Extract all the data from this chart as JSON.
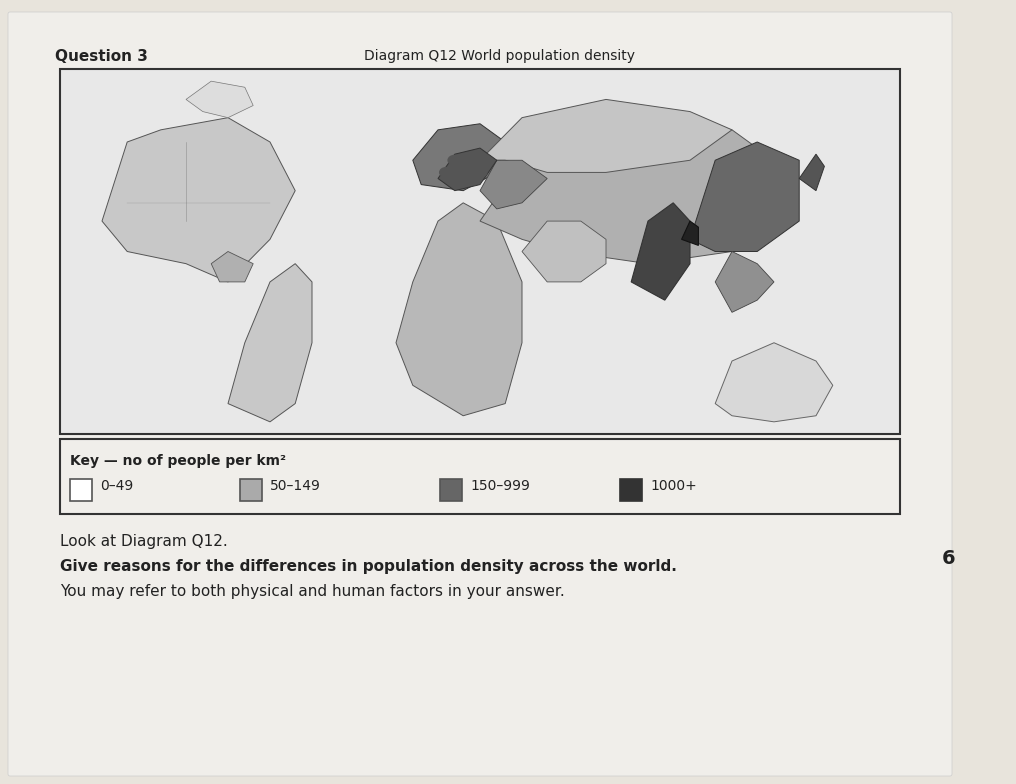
{
  "page_bg": "#e8e4dc",
  "paper_bg": "#f0eeea",
  "question_label": "Question 3",
  "diagram_title": "Diagram Q12 World population density",
  "map_border_color": "#333333",
  "key_title": "Key — no of people per km²",
  "legend_items": [
    {
      "label": "0–49",
      "color": "#ffffff",
      "edge": "#555555"
    },
    {
      "label": "50–149",
      "color": "#aaaaaa",
      "edge": "#555555"
    },
    {
      "label": "150–999",
      "color": "#666666",
      "edge": "#555555"
    },
    {
      "label": "1000+",
      "color": "#333333",
      "edge": "#333333"
    }
  ],
  "question_text_1": "Look at Diagram Q12.",
  "question_text_2": "Give reasons for the differences in population density across the world.",
  "question_text_3": "You may refer to both physical and human factors in your answer.",
  "marks": "6",
  "question_fontsize": 11,
  "title_fontsize": 10,
  "key_fontsize": 10,
  "marks_fontsize": 14
}
